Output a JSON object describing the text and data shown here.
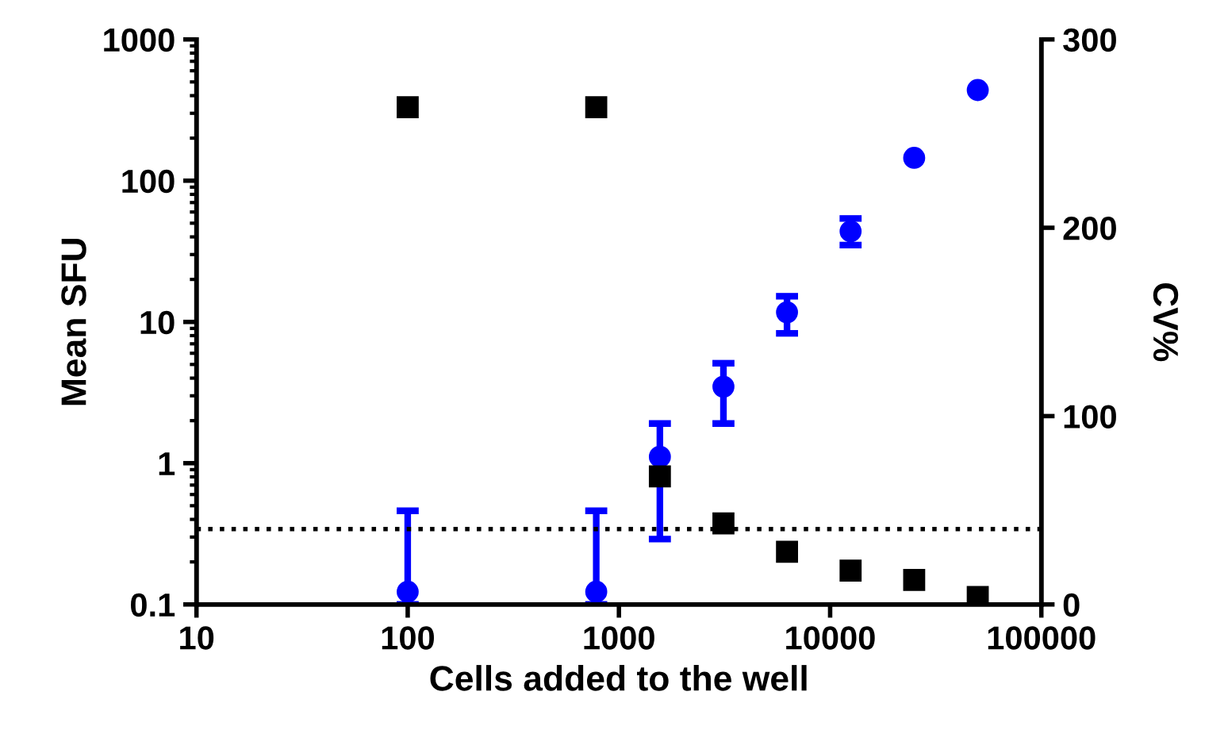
{
  "chart_data": {
    "type": "scatter",
    "xlabel": "Cells added to the well",
    "ylabel": "Mean SFU",
    "y2label": "CV%",
    "log": "xy",
    "x": [
      100,
      781,
      1563,
      3125,
      6250,
      12500,
      25000,
      50000
    ],
    "series": [
      {
        "color": "#0000ff",
        "marker": "circle",
        "values": [
          0.123,
          0.123,
          1.11,
          3.48,
          11.7,
          43.8,
          145,
          438
        ],
        "errors": [
          [
            0.1,
            0.46
          ],
          [
            0.1,
            0.46
          ],
          [
            0.29,
            1.91
          ],
          [
            1.91,
            5.1
          ],
          [
            8.3,
            15.2
          ],
          [
            35,
            54
          ],
          null,
          null
        ]
      },
      {
        "color": "#000000",
        "marker": "square",
        "axis": "y2",
        "values": [
          264,
          264,
          68,
          43,
          28,
          18,
          13,
          4
        ]
      }
    ],
    "xlim": [
      10,
      100000
    ],
    "xticks": [
      10,
      100,
      1000,
      10000,
      100000
    ],
    "ylim": [
      0.1,
      1000
    ],
    "yticks": [
      0.1,
      1,
      10,
      100,
      1000
    ],
    "y2lim": [
      0,
      300
    ],
    "y2ticks": [
      0,
      100,
      200,
      300
    ],
    "ref_lines": [
      {
        "axis": "y2",
        "value": 40,
        "color": "#000000",
        "line_style": "dotted"
      }
    ],
    "grid": false,
    "legend": false
  }
}
